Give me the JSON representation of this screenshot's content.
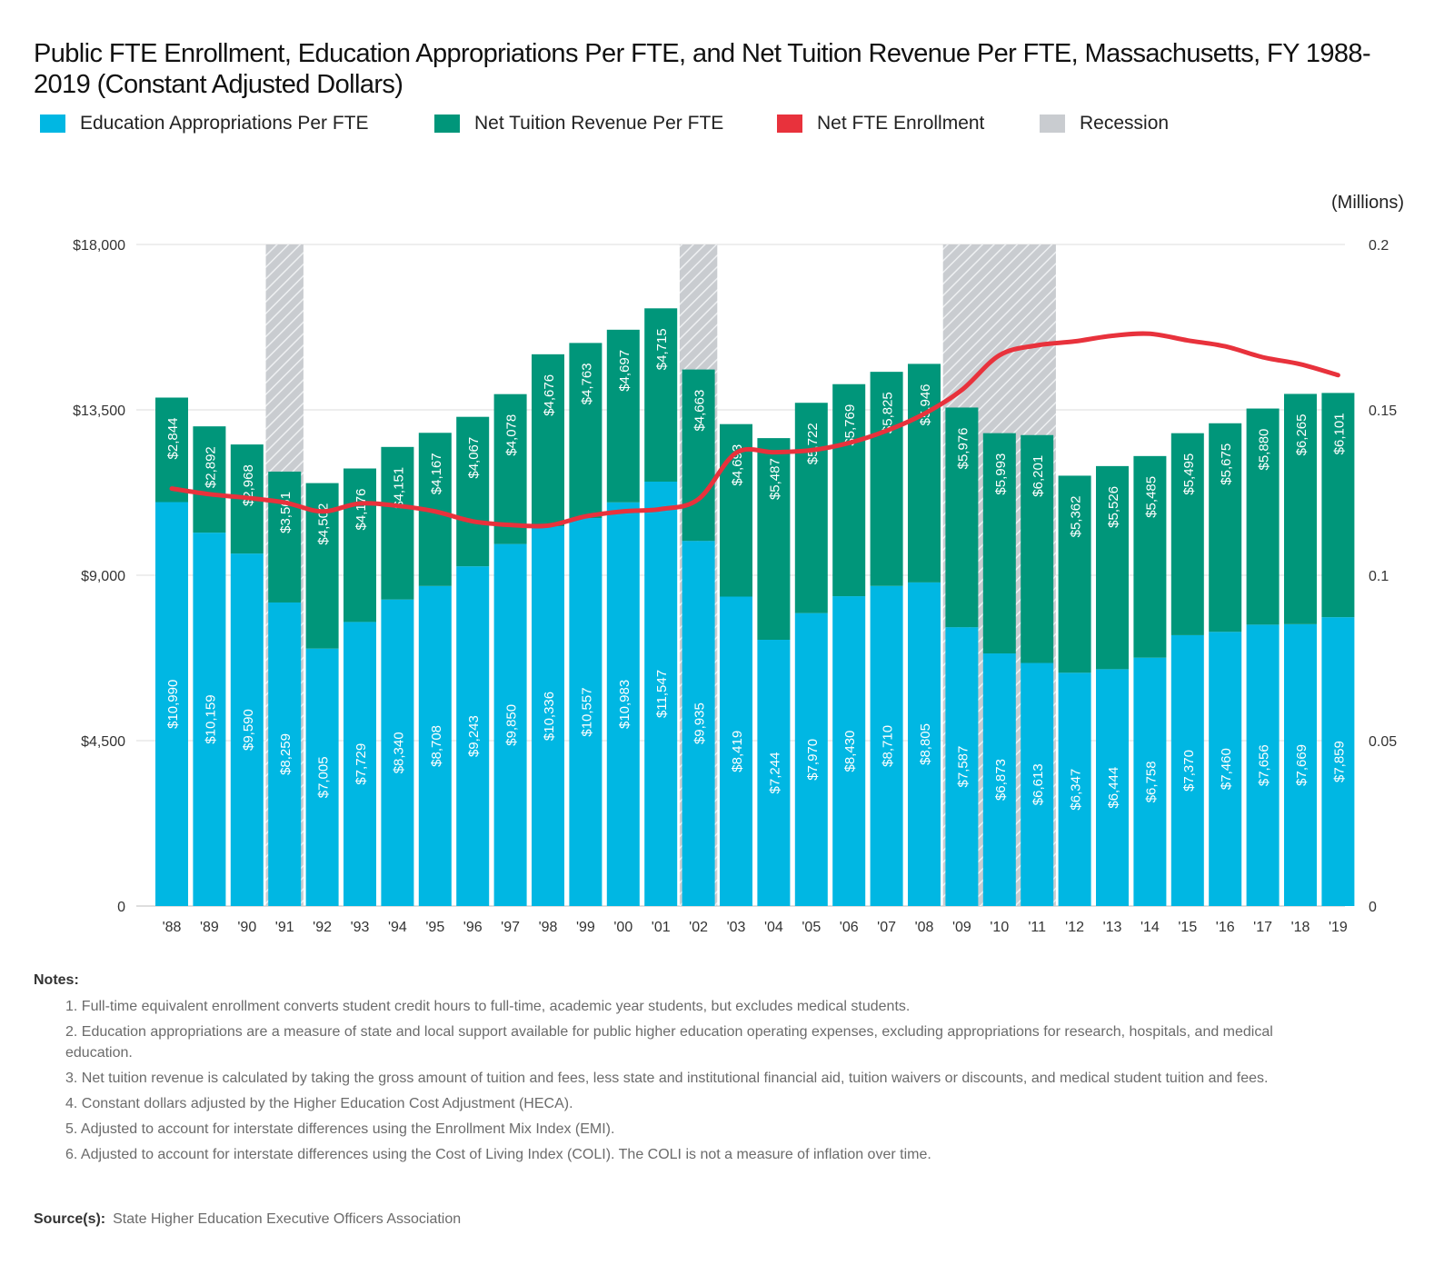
{
  "title": "Public FTE Enrollment, Education Appropriations Per FTE, and Net Tuition Revenue Per FTE, Massachusetts, FY 1988-2019 (Constant Adjusted Dollars)",
  "legend": [
    {
      "label": "Education Appropriations Per FTE",
      "color": "#00b7e3"
    },
    {
      "label": "Net Tuition Revenue Per FTE",
      "color": "#00967a"
    },
    {
      "label": "Net FTE Enrollment",
      "color": "#e8323c"
    },
    {
      "label": "Recession",
      "color": "#c9ccd0"
    }
  ],
  "chart_data": {
    "type": "bar",
    "stacked": true,
    "categories": [
      "'88",
      "'89",
      "'90",
      "'91",
      "'92",
      "'93",
      "'94",
      "'95",
      "'96",
      "'97",
      "'98",
      "'99",
      "'00",
      "'01",
      "'02",
      "'03",
      "'04",
      "'05",
      "'06",
      "'07",
      "'08",
      "'09",
      "'10",
      "'11",
      "'12",
      "'13",
      "'14",
      "'15",
      "'16",
      "'17",
      "'18",
      "'19"
    ],
    "series": [
      {
        "name": "Education Appropriations Per FTE",
        "color": "#00b7e3",
        "values": [
          10990,
          10159,
          9590,
          8259,
          7005,
          7729,
          8340,
          8708,
          9243,
          9850,
          10336,
          10557,
          10983,
          11547,
          9935,
          8419,
          7244,
          7970,
          8430,
          8710,
          8805,
          7587,
          6873,
          6613,
          6347,
          6444,
          6758,
          7370,
          7460,
          7656,
          7669,
          7859
        ],
        "labels": [
          "$10,990",
          "$10,159",
          "$9,590",
          "$8,259",
          "$7,005",
          "$7,729",
          "$8,340",
          "$8,708",
          "$9,243",
          "$9,850",
          "$10,336",
          "$10,557",
          "$10,983",
          "$11,547",
          "$9,935",
          "$8,419",
          "$7,244",
          "$7,970",
          "$8,430",
          "$8,710",
          "$8,805",
          "$7,587",
          "$6,873",
          "$6,613",
          "$6,347",
          "$6,444",
          "$6,758",
          "$7,370",
          "$7,460",
          "$7,656",
          "$7,669",
          "$7,859"
        ]
      },
      {
        "name": "Net Tuition Revenue Per FTE",
        "color": "#00967a",
        "values": [
          2844,
          2892,
          2968,
          3561,
          4502,
          4176,
          4151,
          4167,
          4067,
          4078,
          4676,
          4763,
          4697,
          4715,
          4663,
          4693,
          5487,
          5722,
          5769,
          5825,
          5946,
          5976,
          5993,
          6201,
          5362,
          5526,
          5485,
          5495,
          5675,
          5880,
          6265,
          6101
        ],
        "labels": [
          "$2,844",
          "$2,892",
          "$2,968",
          "$3,561",
          "$4,502",
          "$4,176",
          "$4,151",
          "$4,167",
          "$4,067",
          "$4,078",
          "$4,676",
          "$4,763",
          "$4,697",
          "$4,715",
          "$4,663",
          "$4,693",
          "$5,487",
          "$5,722",
          "$5,769",
          "$5,825",
          "$5,946",
          "$5,976",
          "$5,993",
          "$6,201",
          "$5,362",
          "$5,526",
          "$5,485",
          "$5,495",
          "$5,675",
          "$5,880",
          "$6,265",
          "$6,101"
        ]
      }
    ],
    "line": {
      "name": "Net FTE Enrollment",
      "color": "#e8323c",
      "values": [
        0.1262,
        0.1245,
        0.1234,
        0.122,
        0.1193,
        0.1217,
        0.121,
        0.1193,
        0.1163,
        0.1152,
        0.115,
        0.1178,
        0.1193,
        0.12,
        0.123,
        0.137,
        0.1372,
        0.1378,
        0.14,
        0.1437,
        0.1488,
        0.156,
        0.1665,
        0.1695,
        0.1707,
        0.1724,
        0.173,
        0.171,
        0.1692,
        0.1659,
        0.1638,
        0.1605
      ]
    },
    "recessions": [
      [
        "'90",
        "'90"
      ],
      [
        "'01",
        "'01"
      ],
      [
        "'08",
        "'10"
      ]
    ],
    "y_left": {
      "min": 0,
      "max": 18000,
      "ticks": [
        0,
        4500,
        9000,
        13500,
        18000
      ],
      "tick_labels": [
        "0",
        "$4,500",
        "$9,000",
        "$13,500",
        "$18,000"
      ]
    },
    "y_right": {
      "min": 0,
      "max": 0.2,
      "unit_label": "(Millions)",
      "tick_labels": [
        "0",
        "0.05",
        "0.1",
        "0.15",
        "0.2"
      ]
    },
    "grid": true,
    "legend_position": "top-left"
  },
  "notes": {
    "title": "Notes:",
    "items": [
      "1. Full-time equivalent enrollment converts student credit hours to full-time, academic year students, but excludes medical students.",
      "2. Education appropriations are a measure of state and local support available for public higher education operating expenses, excluding appropriations for research, hospitals, and medical education.",
      "3. Net tuition revenue is calculated by taking the gross amount of tuition and fees, less state and institutional financial aid, tuition waivers or discounts, and medical student tuition and fees.",
      "4. Constant dollars adjusted by the Higher Education Cost Adjustment (HECA).",
      "5. Adjusted to account for interstate differences using the Enrollment Mix Index (EMI).",
      "6. Adjusted to account for interstate differences using the Cost of Living Index (COLI). The COLI is not a measure of inflation over time."
    ]
  },
  "source": {
    "label": "Source(s):",
    "text": "State Higher Education Executive Officers Association"
  }
}
